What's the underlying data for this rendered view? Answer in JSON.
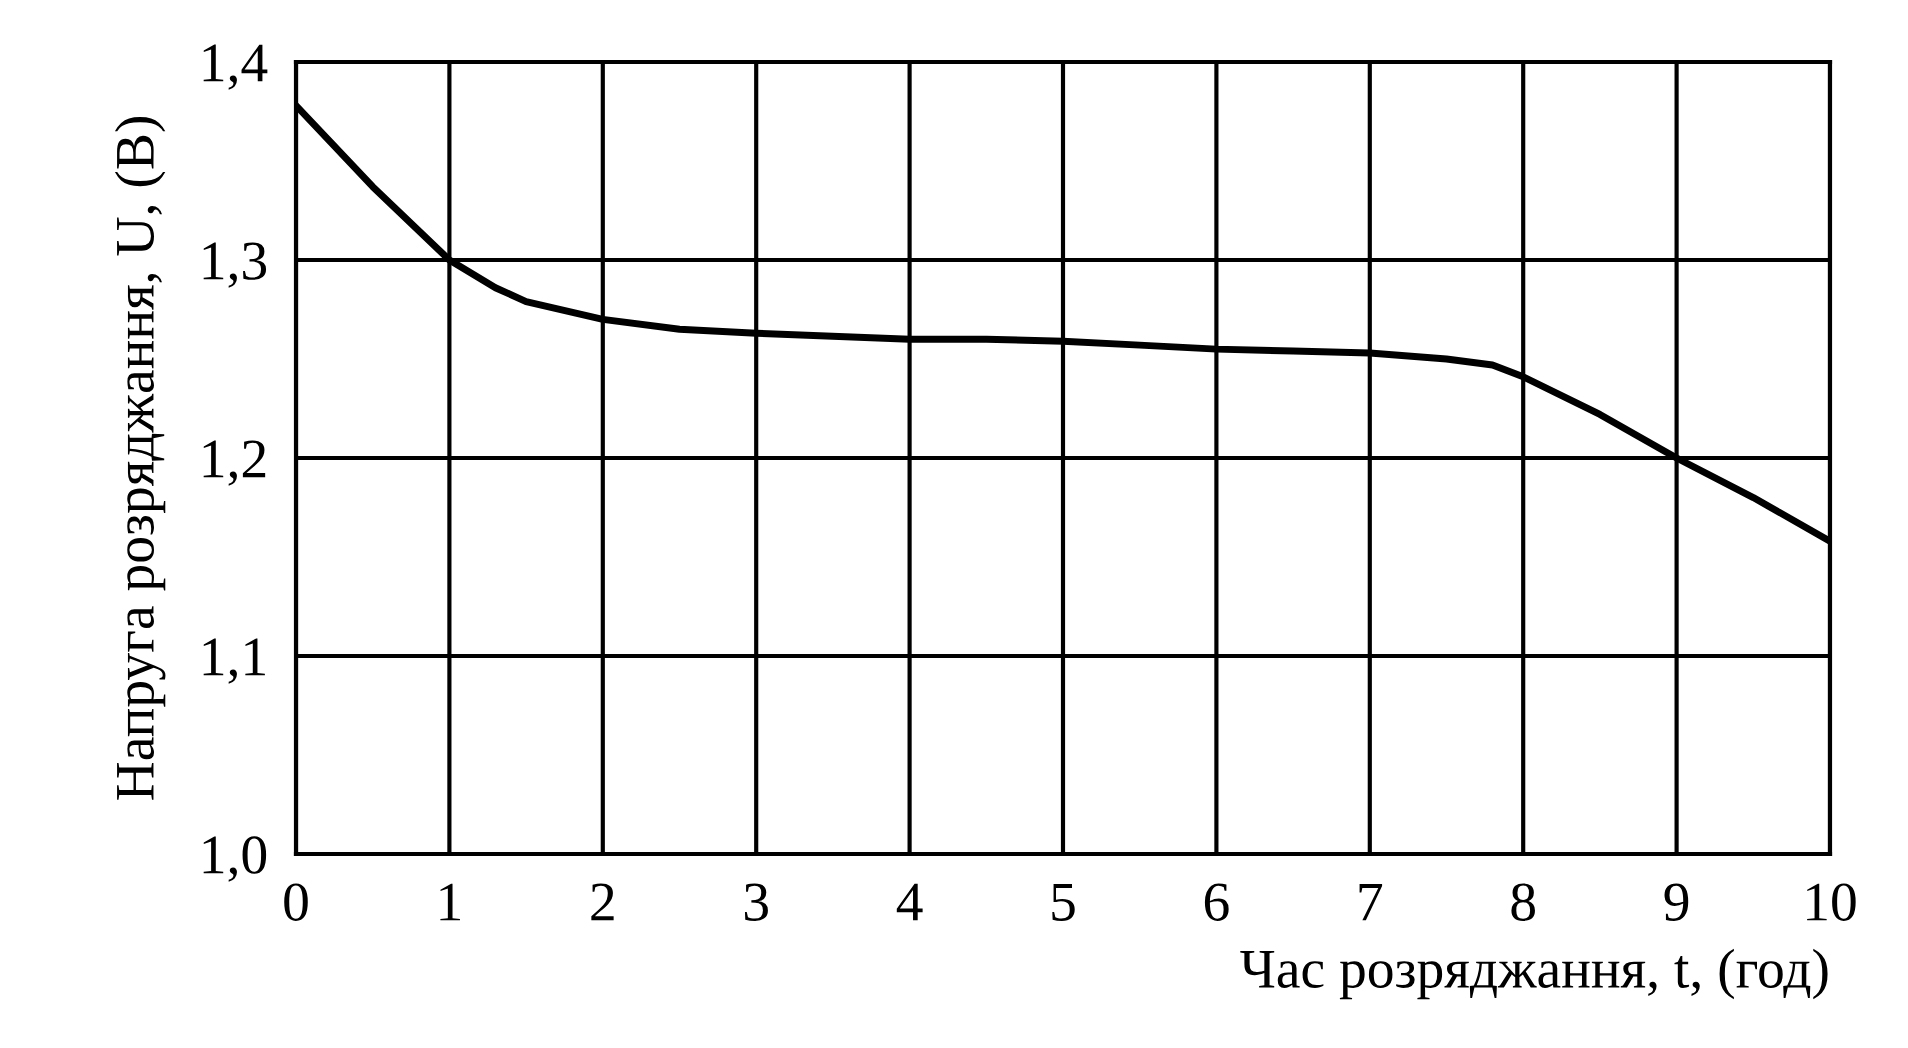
{
  "chart_data": {
    "type": "line",
    "xlabel": "Час розряджання, t, (год)",
    "ylabel": "Напруга розряджання, U, (В)",
    "x": [
      0,
      0.5,
      1,
      1.3,
      1.5,
      2,
      2.5,
      3,
      4,
      4.5,
      5,
      5.5,
      6,
      6.5,
      7,
      7.5,
      7.8,
      8,
      8.5,
      9,
      9.5,
      10
    ],
    "series": [
      {
        "color": "#000000",
        "values": [
          1.378,
          1.337,
          1.3,
          1.286,
          1.279,
          1.27,
          1.265,
          1.263,
          1.26,
          1.26,
          1.259,
          1.257,
          1.255,
          1.254,
          1.253,
          1.25,
          1.247,
          1.241,
          1.222,
          1.2,
          1.18,
          1.158
        ]
      }
    ],
    "xlim": [
      0,
      10
    ],
    "xticks": [
      0,
      1,
      2,
      3,
      4,
      5,
      6,
      7,
      8,
      9,
      10
    ],
    "ylim": [
      1.0,
      1.4
    ],
    "yticks": [
      {
        "value": 1.0,
        "label": "1,0"
      },
      {
        "value": 1.1,
        "label": "1,1"
      },
      {
        "value": 1.2,
        "label": "1,2"
      },
      {
        "value": 1.3,
        "label": "1,3"
      },
      {
        "value": 1.4,
        "label": "1,4"
      }
    ],
    "grid": true,
    "marker": "none",
    "line_style": "solid",
    "legend": false
  }
}
